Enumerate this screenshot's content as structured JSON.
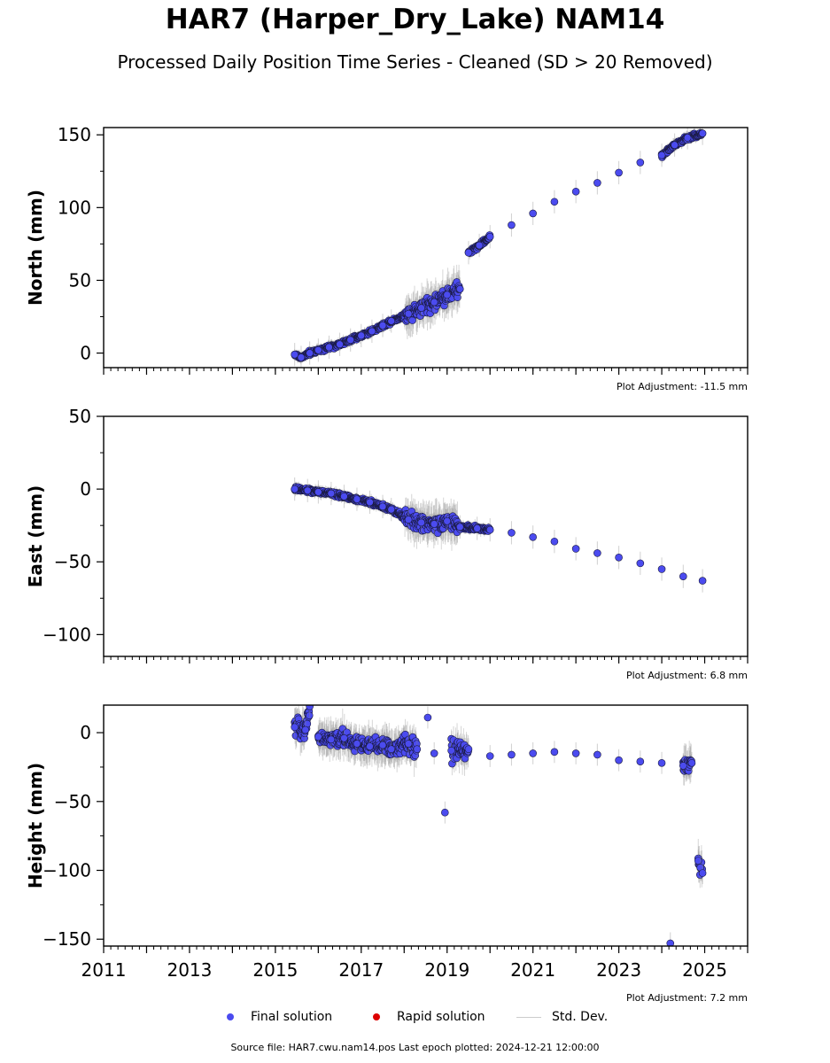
{
  "page": {
    "title": "HAR7 (Harper_Dry_Lake) NAM14",
    "subtitle": "Processed Daily Position Time Series - Cleaned (SD > 20 Removed)",
    "footer": "Source file: HAR7.cwu.nam14.pos  Last epoch plotted: 2024-12-21 12:00:00"
  },
  "legend": {
    "final_label": "Final solution",
    "rapid_label": "Rapid solution",
    "std_label": "Std. Dev.",
    "final_color": "#4b4bef",
    "rapid_color": "#dd0000",
    "std_color": "#cccccc"
  },
  "chart_data": [
    {
      "type": "scatter",
      "ylabel": "North (mm)",
      "annotation": "Plot Adjustment: -11.5 mm",
      "xlim": [
        2011,
        2026
      ],
      "ylim": [
        -10,
        155
      ],
      "yticks": [
        0,
        50,
        100,
        150
      ],
      "xticks": [
        2011,
        2013,
        2015,
        2017,
        2019,
        2021,
        2023,
        2025
      ],
      "show_xtick_labels": false,
      "grid": false,
      "series": [
        {
          "values": [
            {
              "x": 2015.45,
              "y": -1
            },
            {
              "x": 2015.6,
              "y": -3
            },
            {
              "x": 2015.8,
              "y": 0
            },
            {
              "x": 2016.0,
              "y": 2
            },
            {
              "x": 2016.25,
              "y": 4
            },
            {
              "x": 2016.5,
              "y": 6
            },
            {
              "x": 2016.75,
              "y": 9
            },
            {
              "x": 2017.0,
              "y": 12
            },
            {
              "x": 2017.25,
              "y": 15
            },
            {
              "x": 2017.5,
              "y": 19
            },
            {
              "x": 2017.7,
              "y": 22
            },
            {
              "x": 2018.1,
              "y": 27
            },
            {
              "x": 2018.4,
              "y": 31
            },
            {
              "x": 2018.7,
              "y": 35
            },
            {
              "x": 2019.0,
              "y": 40
            },
            {
              "x": 2019.3,
              "y": 44
            },
            {
              "x": 2019.5,
              "y": 69
            },
            {
              "x": 2019.75,
              "y": 74
            },
            {
              "x": 2020.0,
              "y": 80
            },
            {
              "x": 2020.5,
              "y": 88
            },
            {
              "x": 2021.0,
              "y": 96
            },
            {
              "x": 2021.5,
              "y": 104
            },
            {
              "x": 2022.0,
              "y": 111
            },
            {
              "x": 2022.5,
              "y": 117
            },
            {
              "x": 2023.0,
              "y": 124
            },
            {
              "x": 2023.5,
              "y": 131
            },
            {
              "x": 2024.0,
              "y": 136
            },
            {
              "x": 2024.3,
              "y": 143
            },
            {
              "x": 2024.6,
              "y": 148
            },
            {
              "x": 2024.95,
              "y": 151
            }
          ]
        }
      ]
    },
    {
      "type": "scatter",
      "ylabel": "East (mm)",
      "annotation": "Plot Adjustment: 6.8 mm",
      "xlim": [
        2011,
        2026
      ],
      "ylim": [
        -115,
        50
      ],
      "yticks": [
        -100,
        -50,
        0,
        50
      ],
      "xticks": [
        2011,
        2013,
        2015,
        2017,
        2019,
        2021,
        2023,
        2025
      ],
      "show_xtick_labels": false,
      "grid": false,
      "series": [
        {
          "values": [
            {
              "x": 2015.45,
              "y": 0
            },
            {
              "x": 2015.75,
              "y": -1
            },
            {
              "x": 2016.0,
              "y": -2
            },
            {
              "x": 2016.3,
              "y": -3
            },
            {
              "x": 2016.6,
              "y": -5
            },
            {
              "x": 2016.9,
              "y": -7
            },
            {
              "x": 2017.2,
              "y": -9
            },
            {
              "x": 2017.5,
              "y": -12
            },
            {
              "x": 2017.7,
              "y": -14
            },
            {
              "x": 2018.1,
              "y": -21
            },
            {
              "x": 2018.4,
              "y": -23
            },
            {
              "x": 2018.7,
              "y": -24
            },
            {
              "x": 2019.0,
              "y": -22
            },
            {
              "x": 2019.3,
              "y": -26
            },
            {
              "x": 2019.7,
              "y": -27
            },
            {
              "x": 2020.0,
              "y": -28
            },
            {
              "x": 2020.5,
              "y": -30
            },
            {
              "x": 2021.0,
              "y": -33
            },
            {
              "x": 2021.5,
              "y": -36
            },
            {
              "x": 2022.0,
              "y": -41
            },
            {
              "x": 2022.5,
              "y": -44
            },
            {
              "x": 2023.0,
              "y": -47
            },
            {
              "x": 2023.5,
              "y": -51
            },
            {
              "x": 2024.0,
              "y": -55
            },
            {
              "x": 2024.5,
              "y": -60
            },
            {
              "x": 2024.95,
              "y": -63
            }
          ]
        }
      ]
    },
    {
      "type": "scatter",
      "ylabel": "Height (mm)",
      "annotation": "Plot Adjustment: 7.2 mm",
      "xlim": [
        2011,
        2026
      ],
      "ylim": [
        -155,
        20
      ],
      "yticks": [
        -150,
        -100,
        -50,
        0
      ],
      "xticks": [
        2011,
        2013,
        2015,
        2017,
        2019,
        2021,
        2023,
        2025
      ],
      "show_xtick_labels": true,
      "grid": false,
      "series": [
        {
          "values": [
            {
              "x": 2015.45,
              "y": 4
            },
            {
              "x": 2015.7,
              "y": 2
            },
            {
              "x": 2015.8,
              "y": 19
            },
            {
              "x": 2016.0,
              "y": -3
            },
            {
              "x": 2016.3,
              "y": -5
            },
            {
              "x": 2016.6,
              "y": -4
            },
            {
              "x": 2016.9,
              "y": -8
            },
            {
              "x": 2017.2,
              "y": -10
            },
            {
              "x": 2017.5,
              "y": -9
            },
            {
              "x": 2017.7,
              "y": -12
            },
            {
              "x": 2018.1,
              "y": -8
            },
            {
              "x": 2018.3,
              "y": -12
            },
            {
              "x": 2018.55,
              "y": 11
            },
            {
              "x": 2018.7,
              "y": -15
            },
            {
              "x": 2018.95,
              "y": -58
            },
            {
              "x": 2019.1,
              "y": -13
            },
            {
              "x": 2019.5,
              "y": -12
            },
            {
              "x": 2020.0,
              "y": -17
            },
            {
              "x": 2020.5,
              "y": -16
            },
            {
              "x": 2021.0,
              "y": -15
            },
            {
              "x": 2021.5,
              "y": -14
            },
            {
              "x": 2022.0,
              "y": -15
            },
            {
              "x": 2022.5,
              "y": -16
            },
            {
              "x": 2023.0,
              "y": -20
            },
            {
              "x": 2023.5,
              "y": -21
            },
            {
              "x": 2024.0,
              "y": -22
            },
            {
              "x": 2024.5,
              "y": -24
            },
            {
              "x": 2024.7,
              "y": -22
            },
            {
              "x": 2024.2,
              "y": -153
            },
            {
              "x": 2024.85,
              "y": -93
            },
            {
              "x": 2024.9,
              "y": -98
            },
            {
              "x": 2024.95,
              "y": -102
            }
          ]
        }
      ]
    }
  ]
}
